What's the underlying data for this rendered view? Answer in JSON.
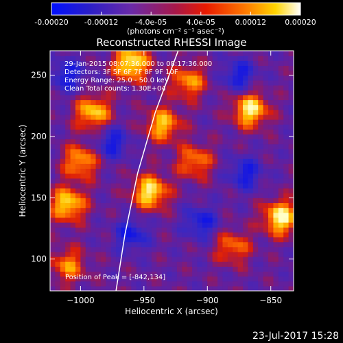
{
  "colorbar": {
    "ticks": [
      "-0.00020",
      "-0.00012",
      "-4.0e-05",
      "4.0e-05",
      "0.00012",
      "0.00020"
    ],
    "unit": "(photons cm⁻² s⁻¹ asec⁻²)",
    "range": [
      -0.0002,
      0.0002
    ]
  },
  "info_lines": [
    "29-Jan-2015 08:07:36.000 to 08:17:36.000",
    "Detectors: 3F 5F 6F 7F 8F 9F 10F",
    "Energy Range: 25.0 - 50.0 keV",
    "Clean    Total counts: 1.30E+04"
  ],
  "peak_label": "Position of Peak = [-842,134]",
  "footer_date": "23-Jul-2017 15:28",
  "colors": {
    "background": "#000000",
    "text": "#ffffff",
    "limb": "#ffffff"
  },
  "chart_data": {
    "type": "heatmap",
    "title": "Reconstructed RHESSI Image",
    "xlabel": "Heliocentric X (arcsec)",
    "ylabel": "Heliocentric Y (arcsec)",
    "xlim": [
      -1024,
      -832
    ],
    "ylim": [
      74,
      270
    ],
    "xticks": [
      -1000,
      -950,
      -900,
      -850
    ],
    "yticks": [
      100,
      150,
      200,
      250
    ],
    "colormap": "rainbow-hot (blue-purple-red-orange-yellow-white)",
    "value_range": [
      -0.0002,
      0.0002
    ],
    "bright_sources": [
      {
        "x": -842,
        "y": 134,
        "level": 0.95
      },
      {
        "x": -960,
        "y": 260,
        "level": 0.95
      },
      {
        "x": -866,
        "y": 222,
        "level": 0.9
      },
      {
        "x": -945,
        "y": 155,
        "level": 0.9
      },
      {
        "x": -1010,
        "y": 145,
        "level": 0.85
      },
      {
        "x": -990,
        "y": 220,
        "level": 0.8
      },
      {
        "x": -935,
        "y": 210,
        "level": 0.75
      },
      {
        "x": -1000,
        "y": 180,
        "level": 0.7
      },
      {
        "x": -1010,
        "y": 95,
        "level": 0.6
      },
      {
        "x": -915,
        "y": 245,
        "level": 0.65
      },
      {
        "x": -910,
        "y": 180,
        "level": 0.6
      },
      {
        "x": -880,
        "y": 110,
        "level": 0.55
      }
    ],
    "faint_sources": [
      {
        "x": -975,
        "y": 195
      },
      {
        "x": -905,
        "y": 130
      },
      {
        "x": -960,
        "y": 120
      },
      {
        "x": -1010,
        "y": 250
      },
      {
        "x": -870,
        "y": 170
      },
      {
        "x": -875,
        "y": 250
      }
    ],
    "limb_arcsec": [
      {
        "x": -972,
        "y": 74
      },
      {
        "x": -965,
        "y": 120
      },
      {
        "x": -955,
        "y": 170
      },
      {
        "x": -941,
        "y": 220
      },
      {
        "x": -923,
        "y": 270
      }
    ],
    "peak": {
      "x": -842,
      "y": 134
    }
  }
}
